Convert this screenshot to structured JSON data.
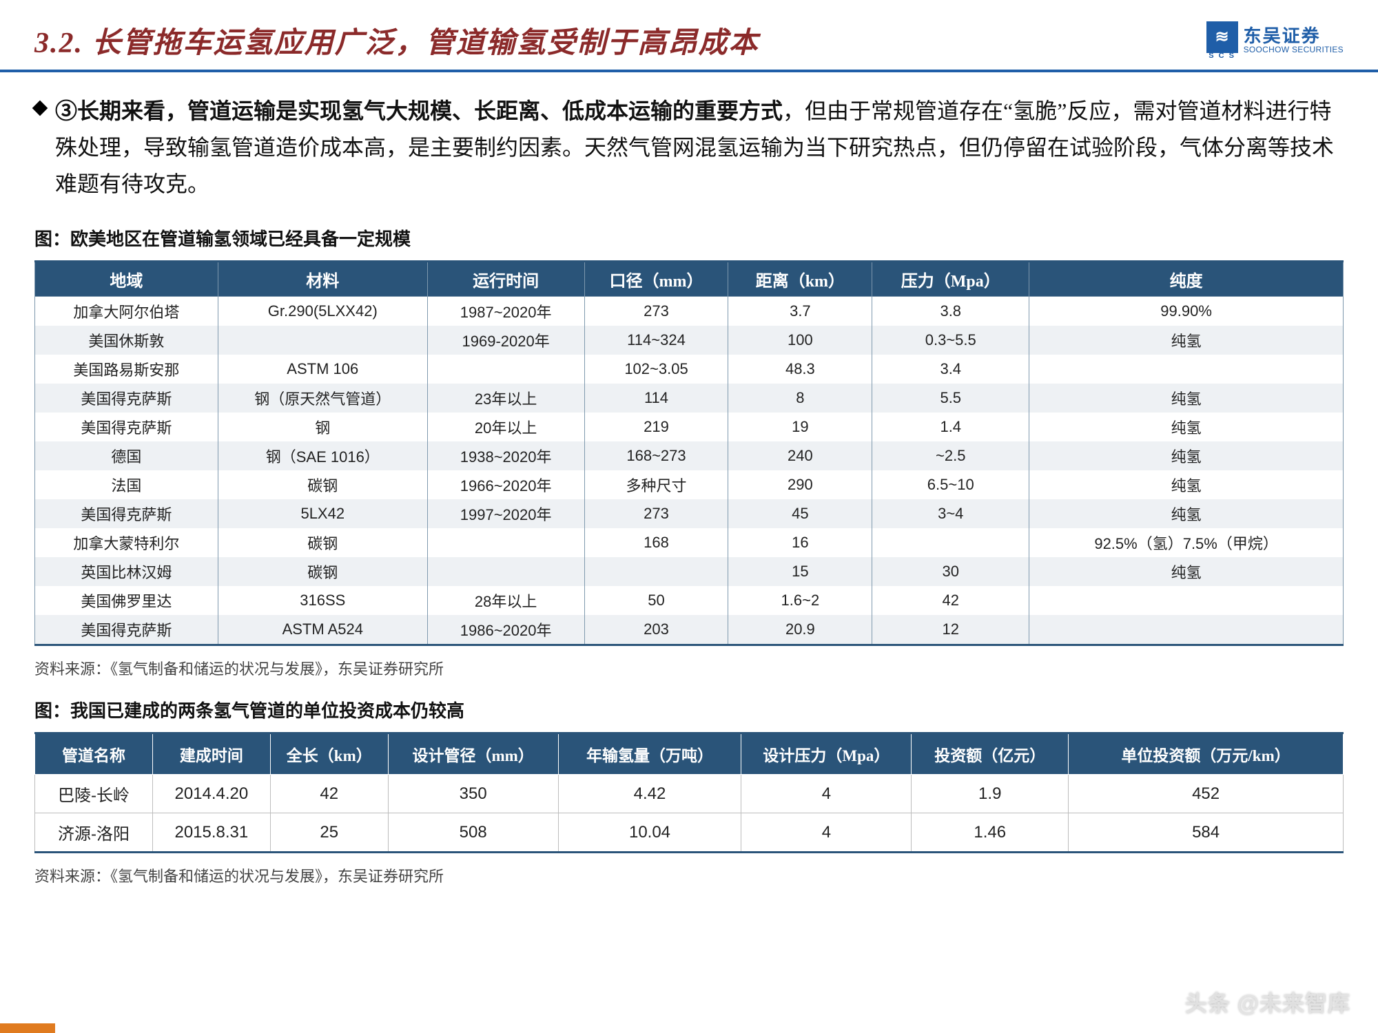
{
  "header": {
    "section_number": "3.2.",
    "title": "长管拖车运氢应用广泛，管道输氢受制于高昂成本",
    "logo_cn": "东吴证券",
    "logo_en": "SOOCHOW SECURITIES",
    "logo_scs": "S C S",
    "logo_mark": "≋",
    "title_color": "#8b2a2a",
    "accent_color": "#1f5ea8"
  },
  "paragraph": {
    "marker": "③",
    "bold_text": "长期来看，管道运输是实现氢气大规模、长距离、低成本运输的重要方式",
    "rest_text": "，但由于常规管道存在“氢脆”反应，需对管道材料进行特殊处理，导致输氢管道造价成本高，是主要制约因素。天然气管网混氢运输为当下研究热点，但仍停留在试验阶段，气体分离等技术难题有待攻克。"
  },
  "table1": {
    "caption": "图：欧美地区在管道输氢领域已经具备一定规模",
    "header_bg": "#2a5479",
    "header_fg": "#ffffff",
    "alt_row_bg": "#eef1f4",
    "border_color": "#7e98ad",
    "columns": [
      "地域",
      "材料",
      "运行时间",
      "口径（mm）",
      "距离（km）",
      "压力（Mpa）",
      "纯度"
    ],
    "col_widths_pct": [
      14,
      16,
      12,
      11,
      11,
      12,
      24
    ],
    "rows": [
      [
        "加拿大阿尔伯塔",
        "Gr.290(5LXX42)",
        "1987~2020年",
        "273",
        "3.7",
        "3.8",
        "99.90%"
      ],
      [
        "美国休斯敦",
        "",
        "1969-2020年",
        "114~324",
        "100",
        "0.3~5.5",
        "纯氢"
      ],
      [
        "美国路易斯安那",
        "ASTM 106",
        "",
        "102~3.05",
        "48.3",
        "3.4",
        ""
      ],
      [
        "美国得克萨斯",
        "钢（原天然气管道）",
        "23年以上",
        "114",
        "8",
        "5.5",
        "纯氢"
      ],
      [
        "美国得克萨斯",
        "钢",
        "20年以上",
        "219",
        "19",
        "1.4",
        "纯氢"
      ],
      [
        "德国",
        "钢（SAE 1016）",
        "1938~2020年",
        "168~273",
        "240",
        "~2.5",
        "纯氢"
      ],
      [
        "法国",
        "碳钢",
        "1966~2020年",
        "多种尺寸",
        "290",
        "6.5~10",
        "纯氢"
      ],
      [
        "美国得克萨斯",
        "5LX42",
        "1997~2020年",
        "273",
        "45",
        "3~4",
        "纯氢"
      ],
      [
        "加拿大蒙特利尔",
        "碳钢",
        "",
        "168",
        "16",
        "",
        "92.5%（氢）7.5%（甲烷）"
      ],
      [
        "英国比林汉姆",
        "碳钢",
        "",
        "",
        "15",
        "30",
        "纯氢"
      ],
      [
        "美国佛罗里达",
        "316SS",
        "28年以上",
        "50",
        "1.6~2",
        "42",
        ""
      ],
      [
        "美国得克萨斯",
        "ASTM A524",
        "1986~2020年",
        "203",
        "20.9",
        "12",
        ""
      ]
    ],
    "source": "资料来源：《氢气制备和储运的状况与发展》，东吴证券研究所"
  },
  "table2": {
    "caption": "图：我国已建成的两条氢气管道的单位投资成本仍较高",
    "header_bg": "#2a5479",
    "header_fg": "#ffffff",
    "columns": [
      "管道名称",
      "建成时间",
      "全长（km）",
      "设计管径（mm）",
      "年输氢量（万吨）",
      "设计压力（Mpa）",
      "投资额（亿元）",
      "单位投资额（万元/km）"
    ],
    "col_widths_pct": [
      9,
      9,
      9,
      13,
      14,
      13,
      12,
      21
    ],
    "rows": [
      [
        "巴陵-长岭",
        "2014.4.20",
        "42",
        "350",
        "4.42",
        "4",
        "1.9",
        "452"
      ],
      [
        "济源-洛阳",
        "2015.8.31",
        "25",
        "508",
        "10.04",
        "4",
        "1.46",
        "584"
      ]
    ],
    "source": "资料来源：《氢气制备和储运的状况与发展》，东吴证券研究所"
  },
  "watermark": "头条 @未来智库",
  "footer_accent": "#e07b1f"
}
